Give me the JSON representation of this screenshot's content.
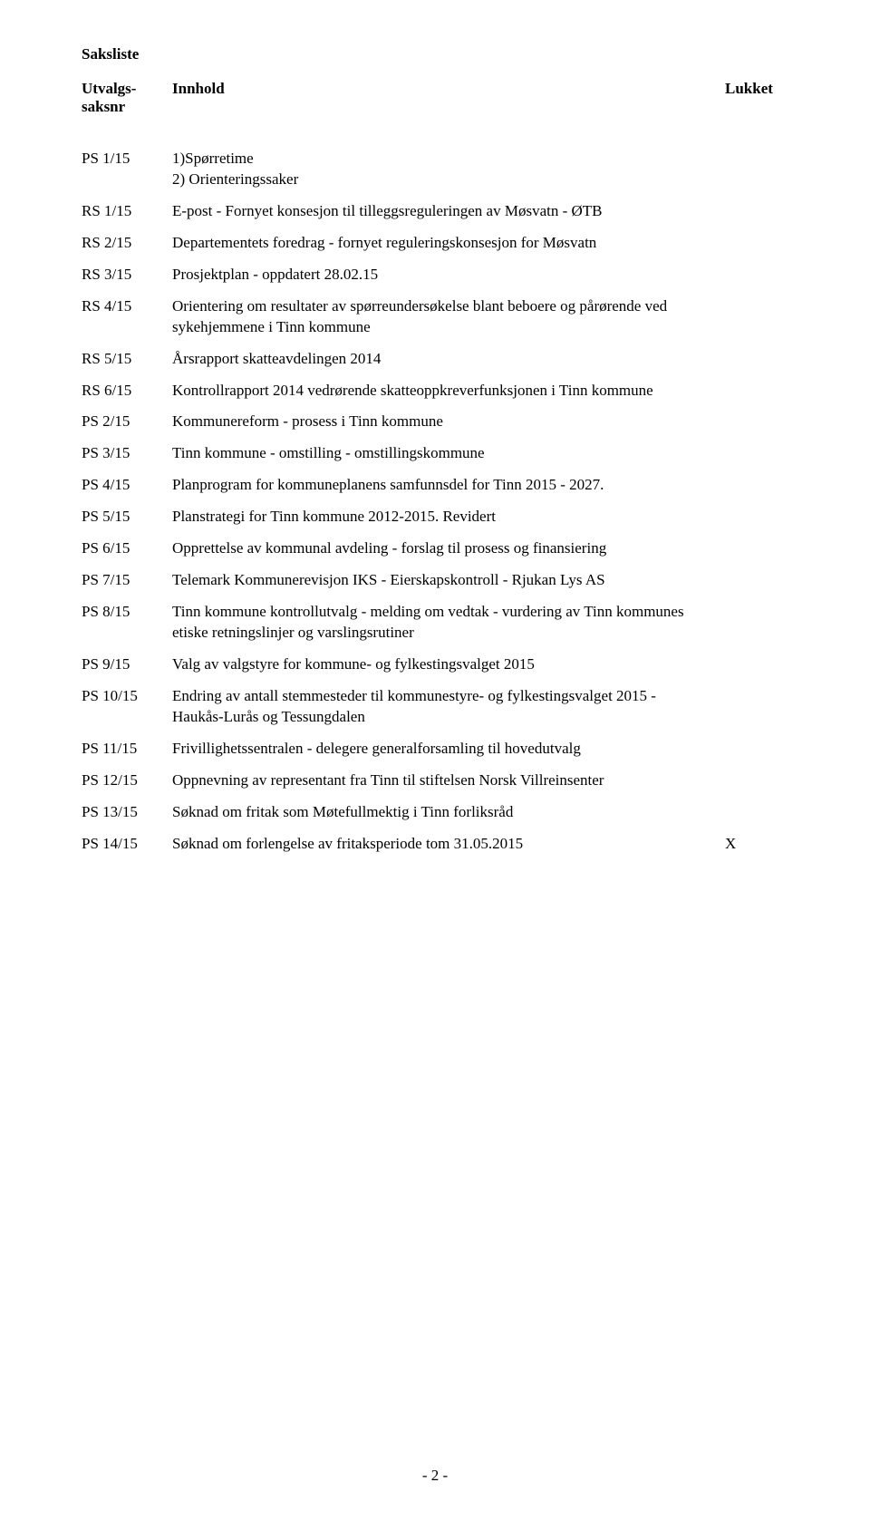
{
  "heading": "Saksliste",
  "header": {
    "saksnr_line1": "Utvalgs-",
    "saksnr_line2": "saksnr",
    "innhold": "Innhold",
    "lukket": "Lukket"
  },
  "rows": [
    {
      "saksnr": "PS 1/15",
      "innhold": "1)Spørretime\n2) Orienteringssaker",
      "lukket": ""
    },
    {
      "saksnr": "RS 1/15",
      "innhold": "E-post - Fornyet konsesjon til tilleggsreguleringen av Møsvatn - ØTB",
      "lukket": ""
    },
    {
      "saksnr": "RS 2/15",
      "innhold": "Departementets foredrag - fornyet reguleringskonsesjon for Møsvatn",
      "lukket": ""
    },
    {
      "saksnr": "RS 3/15",
      "innhold": "Prosjektplan - oppdatert 28.02.15",
      "lukket": ""
    },
    {
      "saksnr": "RS 4/15",
      "innhold": "Orientering om resultater av spørreundersøkelse blant beboere og pårørende ved sykehjemmene i Tinn kommune",
      "lukket": ""
    },
    {
      "saksnr": "RS 5/15",
      "innhold": "Årsrapport skatteavdelingen 2014",
      "lukket": ""
    },
    {
      "saksnr": "RS 6/15",
      "innhold": "Kontrollrapport 2014 vedrørende skatteoppkreverfunksjonen i Tinn kommune",
      "lukket": ""
    },
    {
      "saksnr": "PS 2/15",
      "innhold": "Kommunereform - prosess i Tinn kommune",
      "lukket": ""
    },
    {
      "saksnr": "PS 3/15",
      "innhold": "Tinn kommune - omstilling - omstillingskommune",
      "lukket": ""
    },
    {
      "saksnr": "PS 4/15",
      "innhold": "Planprogram for kommuneplanens samfunnsdel for Tinn 2015 - 2027.",
      "lukket": ""
    },
    {
      "saksnr": "PS 5/15",
      "innhold": "Planstrategi for Tinn kommune 2012-2015. Revidert",
      "lukket": ""
    },
    {
      "saksnr": "PS 6/15",
      "innhold": "Opprettelse av kommunal avdeling - forslag til prosess og finansiering",
      "lukket": ""
    },
    {
      "saksnr": "PS 7/15",
      "innhold": "Telemark Kommunerevisjon IKS - Eierskapskontroll - Rjukan Lys AS",
      "lukket": ""
    },
    {
      "saksnr": "PS 8/15",
      "innhold": "Tinn kommune kontrollutvalg - melding om vedtak - vurdering av Tinn kommunes etiske retningslinjer og varslingsrutiner",
      "lukket": ""
    },
    {
      "saksnr": "PS 9/15",
      "innhold": "Valg av valgstyre for kommune- og fylkestingsvalget 2015",
      "lukket": ""
    },
    {
      "saksnr": "PS 10/15",
      "innhold": "Endring av antall stemmesteder til kommunestyre- og fylkestingsvalget 2015 - Haukås-Lurås og Tessungdalen",
      "lukket": ""
    },
    {
      "saksnr": "PS 11/15",
      "innhold": "Frivillighetssentralen - delegere generalforsamling til hovedutvalg",
      "lukket": ""
    },
    {
      "saksnr": "PS 12/15",
      "innhold": "Oppnevning av representant fra Tinn til stiftelsen Norsk Villreinsenter",
      "lukket": ""
    },
    {
      "saksnr": "PS 13/15",
      "innhold": "Søknad om fritak som Møtefullmektig i Tinn forliksråd",
      "lukket": ""
    },
    {
      "saksnr": "PS 14/15",
      "innhold": "Søknad om forlengelse av fritaksperiode tom 31.05.2015",
      "lukket": "X"
    }
  ],
  "page_number": "- 2 -"
}
